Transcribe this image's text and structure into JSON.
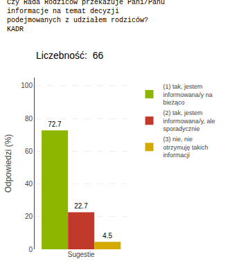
{
  "chart_data": {
    "type": "bar",
    "title": "Czy Rada Rodziców przekazuje Pani/Panu\ninformacje na temat decyzji\npodejmowanych z udziałem rodziców?\nKADR",
    "subtitle": "Liczebność:  66",
    "categories": [
      "Sugestie"
    ],
    "series": [
      {
        "name": "(1) tak, jestem\ninformowana/y na\nbieżąco",
        "color": "#8db600",
        "values": [
          72.7
        ]
      },
      {
        "name": "(2) tak, jestem\ninformowana/y, ale\nsporadycznie",
        "color": "#c0392b",
        "values": [
          22.7
        ]
      },
      {
        "name": "(3) nie, nie\notrzymuję takich\ninformacji",
        "color": "#d4aa00",
        "values": [
          4.5
        ]
      }
    ],
    "ylabel": "Odpowiedzi (%)",
    "ylim": [
      0,
      105
    ],
    "yticks": [
      0,
      20,
      40,
      60,
      80,
      100
    ],
    "grid": true,
    "legend": "right",
    "data_labels": true
  }
}
